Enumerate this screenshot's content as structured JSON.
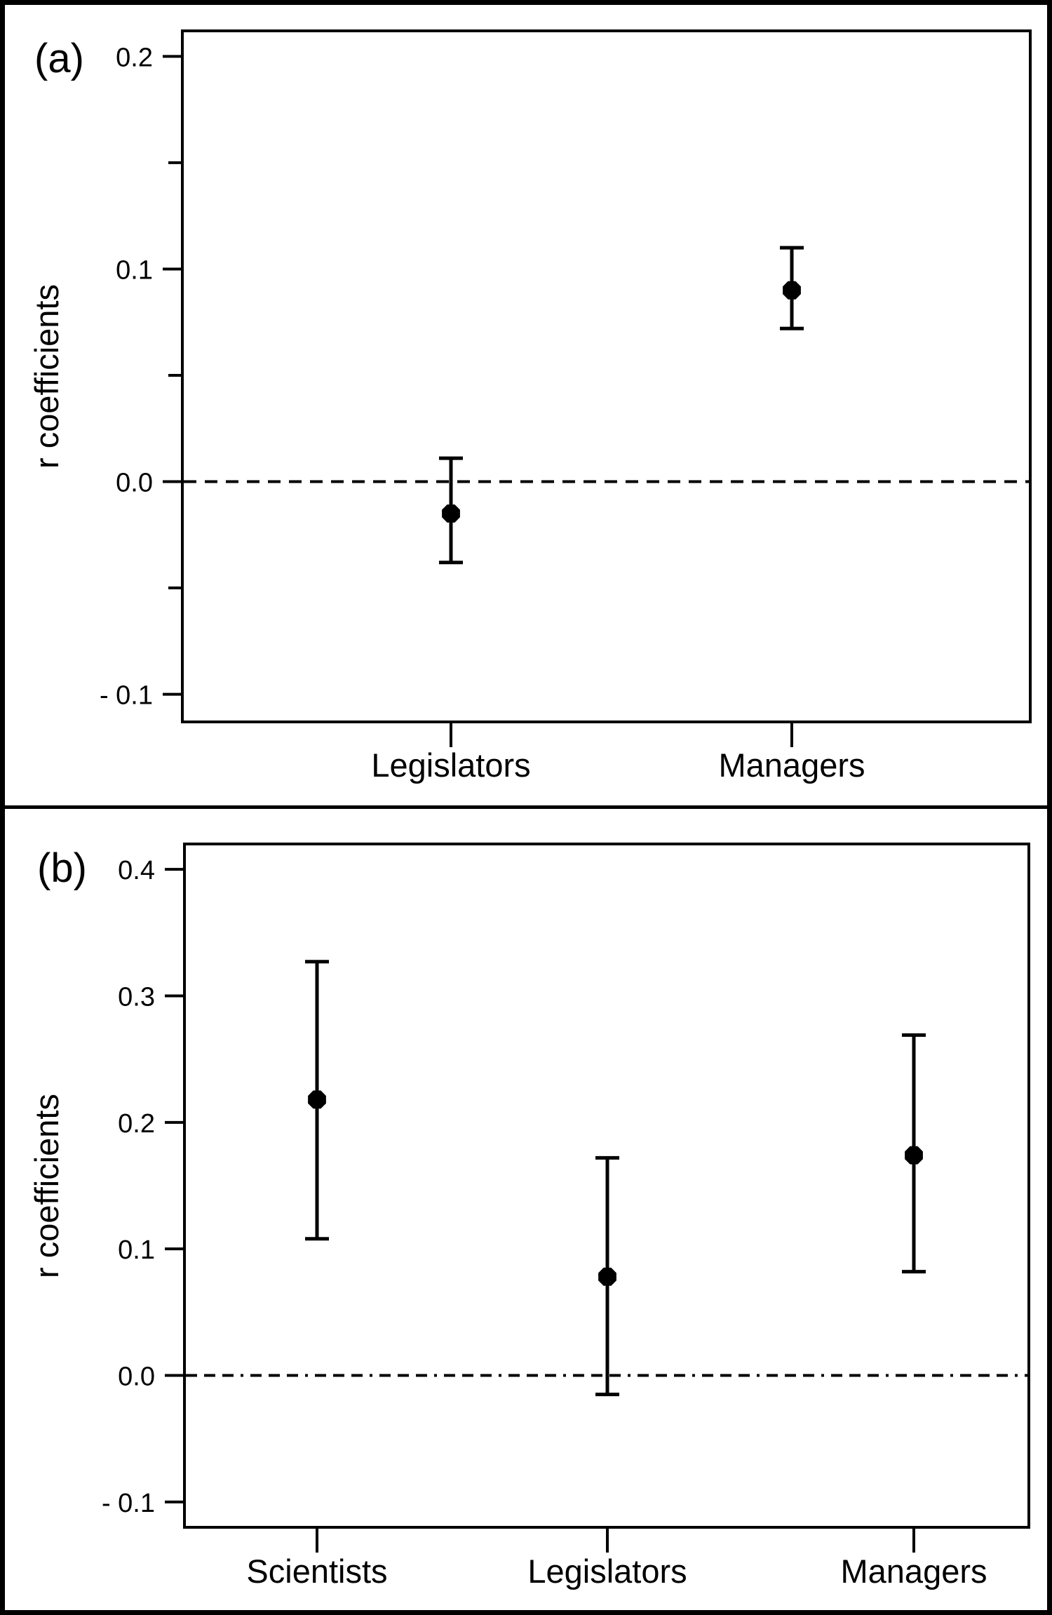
{
  "figure": {
    "background_color": "#ffffff",
    "line_color": "#000000"
  },
  "chart_data": [
    {
      "type": "scatter",
      "subtype": "point-estimates-with-error-bars",
      "panel_label": "(a)",
      "ylabel": "r coefficients",
      "xlabel": "",
      "categories": [
        "Legislators",
        "Managers"
      ],
      "points": [
        {
          "category": "Legislators",
          "r": -0.015,
          "ci_low": -0.038,
          "ci_high": 0.011
        },
        {
          "category": "Managers",
          "r": 0.09,
          "ci_low": 0.072,
          "ci_high": 0.11
        }
      ],
      "ylim": [
        -0.113,
        0.212
      ],
      "yticks_major": [
        {
          "value": 0.2,
          "label": "0.2"
        },
        {
          "value": 0.1,
          "label": "0.1"
        },
        {
          "value": 0.0,
          "label": "0.0"
        },
        {
          "value": -0.1,
          "label": "- 0.1"
        }
      ],
      "yticks_minor": [
        0.15,
        0.05,
        -0.05
      ],
      "zero_line": {
        "value": 0.0,
        "style": "dashed"
      },
      "grid": false,
      "legend": false,
      "marker": "filled-dot",
      "colors": {
        "points": "#000000",
        "axes": "#000000",
        "background": "#ffffff"
      }
    },
    {
      "type": "scatter",
      "subtype": "point-estimates-with-error-bars",
      "panel_label": "(b)",
      "ylabel": "r coefficients",
      "xlabel": "",
      "categories": [
        "Scientists",
        "Legislators",
        "Managers"
      ],
      "points": [
        {
          "category": "Scientists",
          "r": 0.218,
          "ci_low": 0.108,
          "ci_high": 0.327
        },
        {
          "category": "Legislators",
          "r": 0.078,
          "ci_low": -0.015,
          "ci_high": 0.172
        },
        {
          "category": "Managers",
          "r": 0.174,
          "ci_low": 0.082,
          "ci_high": 0.269
        }
      ],
      "ylim": [
        -0.12,
        0.42
      ],
      "yticks_major": [
        {
          "value": 0.4,
          "label": "0.4"
        },
        {
          "value": 0.3,
          "label": "0.3"
        },
        {
          "value": 0.2,
          "label": "0.2"
        },
        {
          "value": 0.1,
          "label": "0.1"
        },
        {
          "value": 0.0,
          "label": "0.0"
        },
        {
          "value": -0.1,
          "label": "- 0.1"
        }
      ],
      "yticks_minor": [],
      "zero_line": {
        "value": 0.0,
        "style": "dash-dot"
      },
      "grid": false,
      "legend": false,
      "marker": "filled-dot",
      "colors": {
        "points": "#000000",
        "axes": "#000000",
        "background": "#ffffff"
      }
    }
  ]
}
